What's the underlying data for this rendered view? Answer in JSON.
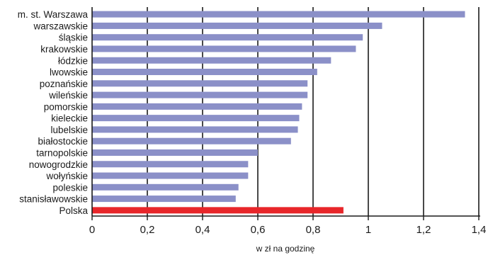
{
  "chart_data": {
    "type": "bar",
    "orientation": "horizontal",
    "title": "",
    "xlabel": "w zł na godzinę",
    "ylabel": "",
    "xlim": [
      0,
      1.4
    ],
    "x_ticks": [
      "0",
      "0,2",
      "0,4",
      "0,6",
      "0,8",
      "1",
      "1,2",
      "1,4"
    ],
    "grid": "vertical",
    "categories": [
      "m. st. Warszawa",
      "warszawskie",
      "śląskie",
      "krakowskie",
      "łódzkie",
      "lwowskie",
      "poznańskie",
      "wileńskie",
      "pomorskie",
      "kieleckie",
      "lubelskie",
      "białostockie",
      "tarnopolskie",
      "nowogrodzkie",
      "wołyńskie",
      "poleskie",
      "stanisławowskie",
      "Polska"
    ],
    "values": [
      1.35,
      1.05,
      0.98,
      0.955,
      0.865,
      0.815,
      0.78,
      0.78,
      0.76,
      0.75,
      0.745,
      0.72,
      0.6,
      0.565,
      0.565,
      0.53,
      0.52,
      0.91
    ],
    "colors": {
      "default": "#8b90c8",
      "highlight": "#e8262a",
      "highlight_category": "Polska"
    }
  }
}
